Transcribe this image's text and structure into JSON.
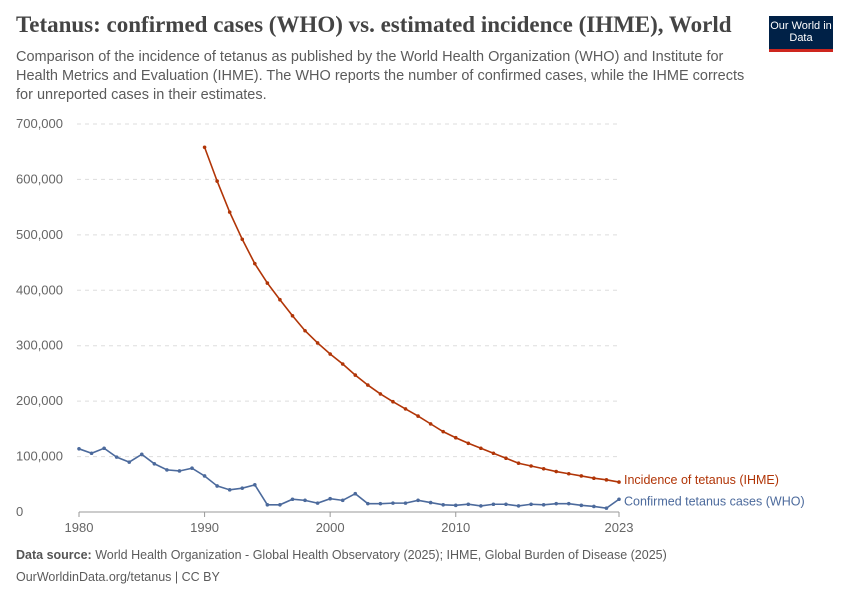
{
  "header": {
    "title": "Tetanus: confirmed cases (WHO) vs. estimated incidence (IHME), World",
    "subtitle": "Comparison of the incidence of tetanus as published by the World Health Organization (WHO) and Institute for Health Metrics and Evaluation (IHME). The WHO reports the number of confirmed cases, while the IHME corrects for unreported cases in their estimates.",
    "logo": "Our World in Data"
  },
  "footer": {
    "source_label": "Data source:",
    "source": "World Health Organization - Global Health Observatory (2025); IHME, Global Burden of Disease (2025)",
    "url": "OurWorldinData.org/tetanus | CC BY"
  },
  "chart_data": {
    "type": "line",
    "xlim": [
      1980,
      2023
    ],
    "ylim": [
      0,
      700000
    ],
    "x_ticks": [
      1980,
      1990,
      2000,
      2010,
      2023
    ],
    "y_ticks": [
      0,
      100000,
      200000,
      300000,
      400000,
      500000,
      600000,
      700000
    ],
    "y_tick_labels": [
      "0",
      "100,000",
      "200,000",
      "300,000",
      "400,000",
      "500,000",
      "600,000",
      "700,000"
    ],
    "grid": "horizontal dashed",
    "series": [
      {
        "name": "Incidence of tetanus (IHME)",
        "color": "#b13507",
        "start": 1990,
        "values": [
          658000,
          597000,
          541000,
          492000,
          448000,
          413000,
          383000,
          354000,
          327000,
          305000,
          285000,
          267000,
          247000,
          229000,
          213000,
          199000,
          186000,
          173000,
          159000,
          145000,
          134000,
          124000,
          115000,
          106000,
          97000,
          88000,
          83000,
          78000,
          73000,
          69000,
          65000,
          61000,
          58000,
          54000
        ]
      },
      {
        "name": "Confirmed tetanus cases (WHO)",
        "color": "#4c6a9c",
        "start": 1980,
        "values": [
          114000,
          106000,
          115000,
          99000,
          90000,
          104000,
          87000,
          76000,
          74000,
          79000,
          65000,
          47000,
          40000,
          43000,
          49000,
          13000,
          13000,
          23000,
          21000,
          16000,
          24000,
          21000,
          33000,
          15000,
          15000,
          16000,
          16000,
          21000,
          17000,
          13000,
          12000,
          14000,
          11000,
          14000,
          14000,
          11000,
          14000,
          13000,
          15000,
          15000,
          12000,
          10000,
          7000,
          23000
        ]
      }
    ]
  }
}
